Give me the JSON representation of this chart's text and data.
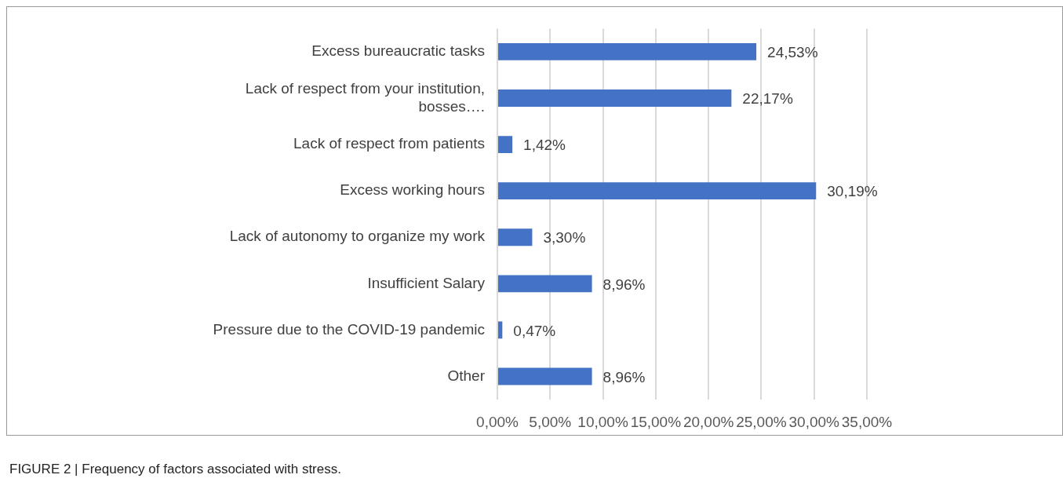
{
  "chart_data": {
    "type": "bar",
    "orientation": "horizontal",
    "categories": [
      "Excess bureaucratic tasks",
      "Lack of respect from your institution, bosses….",
      "Lack of respect from patients",
      "Excess working hours",
      "Lack of autonomy to organize my work",
      "Insufficient Salary",
      "Pressure due to the COVID-19 pandemic",
      "Other"
    ],
    "values": [
      24.53,
      22.17,
      1.42,
      30.19,
      3.3,
      8.96,
      0.47,
      8.96
    ],
    "value_labels": [
      "24,53%",
      "22,17%",
      "1,42%",
      "30,19%",
      "3,30%",
      "8,96%",
      "0,47%",
      "8,96%"
    ],
    "color": "#4472c4",
    "xlim": [
      0,
      35
    ],
    "xticks": [
      {
        "value": 0,
        "label": "0,00%"
      },
      {
        "value": 5,
        "label": "5,00%"
      },
      {
        "value": 10,
        "label": "10,00%"
      },
      {
        "value": 15,
        "label": "15,00%"
      },
      {
        "value": 20,
        "label": "20,00%"
      },
      {
        "value": 25,
        "label": "25,00%"
      },
      {
        "value": 30,
        "label": "30,00%"
      },
      {
        "value": 35,
        "label": "35,00%"
      }
    ],
    "grid": "x",
    "legend": false,
    "annotations": [
      "FIGURE 2 | Frequency of factors associated with stress."
    ]
  }
}
